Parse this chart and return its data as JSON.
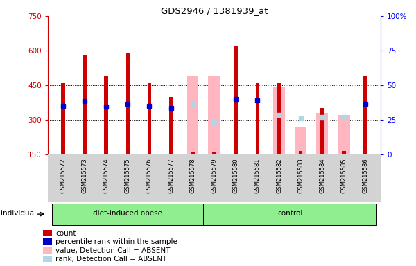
{
  "title": "GDS2946 / 1381939_at",
  "samples": [
    "GSM215572",
    "GSM215573",
    "GSM215574",
    "GSM215575",
    "GSM215576",
    "GSM215577",
    "GSM215578",
    "GSM215579",
    "GSM215580",
    "GSM215581",
    "GSM215582",
    "GSM215583",
    "GSM215584",
    "GSM215585",
    "GSM215586"
  ],
  "groups": [
    {
      "label": "diet-induced obese",
      "start": 0,
      "end": 6
    },
    {
      "label": "control",
      "start": 7,
      "end": 14
    }
  ],
  "red_bar_heights": [
    460,
    580,
    490,
    590,
    460,
    400,
    160,
    160,
    620,
    460,
    460,
    165,
    350,
    165,
    490
  ],
  "pink_bar_heights": [
    0,
    0,
    0,
    0,
    0,
    0,
    490,
    490,
    0,
    0,
    440,
    270,
    330,
    320,
    0
  ],
  "blue_square_y": [
    360,
    380,
    355,
    370,
    360,
    350,
    0,
    0,
    390,
    385,
    0,
    0,
    0,
    0,
    370
  ],
  "light_blue_square_y": [
    0,
    0,
    0,
    0,
    0,
    0,
    370,
    290,
    0,
    0,
    320,
    305,
    310,
    310,
    0
  ],
  "ylim_left": [
    150,
    750
  ],
  "ylim_right": [
    0,
    100
  ],
  "yticks_left": [
    150,
    300,
    450,
    600,
    750
  ],
  "yticks_right": [
    0,
    25,
    50,
    75,
    100
  ],
  "red_color": "#cc0000",
  "pink_color": "#ffb6c1",
  "blue_color": "#0000cc",
  "light_blue_color": "#add8e6",
  "gray_bg": "#d3d3d3",
  "green_color": "#90ee90",
  "individual_label": "individual",
  "legend_items": [
    {
      "color": "#cc0000",
      "label": "count"
    },
    {
      "color": "#0000cc",
      "label": "percentile rank within the sample"
    },
    {
      "color": "#ffb6c1",
      "label": "value, Detection Call = ABSENT"
    },
    {
      "color": "#add8e6",
      "label": "rank, Detection Call = ABSENT"
    }
  ],
  "red_bar_width": 0.18,
  "pink_bar_width": 0.55
}
